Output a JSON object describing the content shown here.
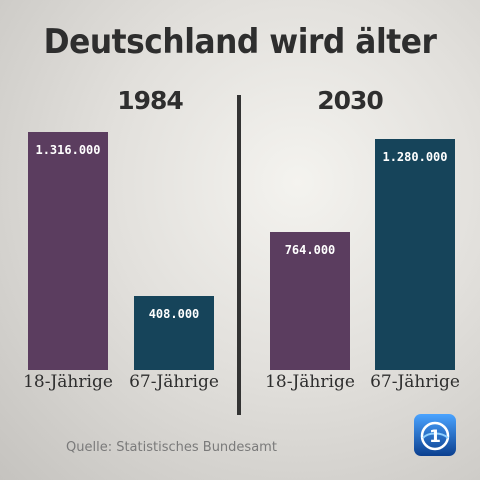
{
  "chart_data": {
    "type": "bar",
    "title": "Deutschland wird älter",
    "groups": [
      {
        "label": "1984",
        "bars": [
          {
            "category": "18-Jährige",
            "value": 1316000,
            "value_label": "1.316.000",
            "color": "#5b3d5f"
          },
          {
            "category": "67-Jährige",
            "value": 408000,
            "value_label": "408.000",
            "color": "#16445a"
          }
        ]
      },
      {
        "label": "2030",
        "bars": [
          {
            "category": "18-Jährige",
            "value": 764000,
            "value_label": "764.000",
            "color": "#5b3d5f"
          },
          {
            "category": "67-Jährige",
            "value": 1280000,
            "value_label": "1.280.000",
            "color": "#16445a"
          }
        ]
      }
    ]
  },
  "source": "Quelle: Statistisches Bundesamt",
  "logo": {
    "icon": "ard-tagesschau-logo-icon",
    "color": "#1f6ec8"
  }
}
